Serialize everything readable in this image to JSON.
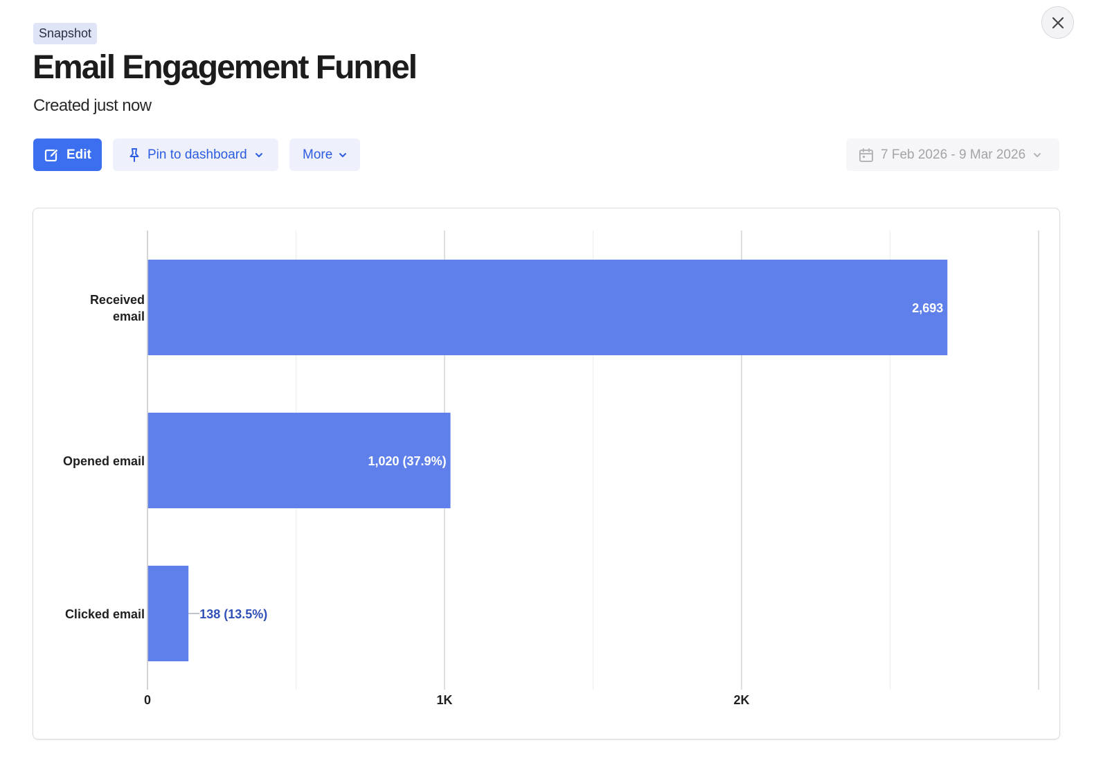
{
  "header": {
    "badge": "Snapshot",
    "title": "Email Engagement Funnel",
    "subtitle": "Created just now"
  },
  "toolbar": {
    "edit_label": "Edit",
    "pin_label": "Pin to dashboard",
    "more_label": "More",
    "date_range": "7 Feb 2026 - 9 Mar 2026"
  },
  "icons": {
    "close": "close-icon",
    "edit": "edit-icon",
    "pin": "pin-icon",
    "chevron": "chevron-down-icon",
    "calendar": "calendar-icon"
  },
  "colors": {
    "bar": "#5f80ea",
    "primary": "#3b6ff0",
    "outside_label": "#3050b8"
  },
  "chart_data": {
    "type": "bar",
    "orientation": "horizontal",
    "categories": [
      [
        "Received",
        "email"
      ],
      [
        "Opened email"
      ],
      [
        "Clicked email"
      ]
    ],
    "values": [
      2693,
      1020,
      138
    ],
    "data_labels": [
      "2,693",
      "1,020 (37.9%)",
      "138 (13.5%)"
    ],
    "xlim": [
      0,
      3000
    ],
    "xticks": [
      0,
      1000,
      2000
    ],
    "xtick_labels": [
      "0",
      "1K",
      "2K"
    ],
    "grid": true
  }
}
